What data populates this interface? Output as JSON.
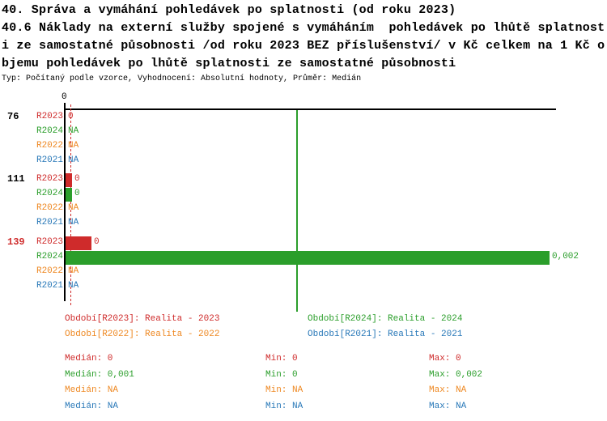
{
  "title_lines": [
    "40. Správa a vymáhání pohledávek po splatnosti (od roku 2023)",
    "40.6 Náklady na externí služby spojené s vymáháním  pohledávek po lhůtě splatnost",
    "i ze samostatné působnosti /od roku 2023 BEZ příslušenství/ v Kč celkem na 1 Kč o",
    "bjemu pohledávek po lhůtě splatnosti ze samostatné působnosti"
  ],
  "meta_line": "Typ: Počítaný podle vzorce, Vyhodnocení: Absolutní hodnoty, Průměr: Medián",
  "colors": {
    "red": "#cf2b2b",
    "green": "#2b9e2b",
    "orange": "#ee8822",
    "blue": "#2878b8",
    "black": "#000000"
  },
  "chart_data": {
    "type": "bar",
    "orientation": "horizontal",
    "xlim": [
      0,
      0.002
    ],
    "x_axis": {
      "tick_label": "0"
    },
    "reference_lines": [
      {
        "name": "median-red",
        "color": "red",
        "style": "dashed",
        "value": 2.7e-05
      },
      {
        "name": "median-green",
        "color": "green",
        "style": "solid",
        "value": 0.00096
      }
    ],
    "groups": [
      {
        "label": "76",
        "label_color": "black",
        "rows": [
          {
            "series": "R2023",
            "color": "red",
            "value": 0,
            "display": "0"
          },
          {
            "series": "R2024",
            "color": "green",
            "value": null,
            "display": "NA"
          },
          {
            "series": "R2022",
            "color": "orange",
            "value": null,
            "display": "NA"
          },
          {
            "series": "R2021",
            "color": "blue",
            "value": null,
            "display": "NA"
          }
        ]
      },
      {
        "label": "111",
        "label_color": "black",
        "rows": [
          {
            "series": "R2023",
            "color": "red",
            "value": 2.7e-05,
            "display": "0"
          },
          {
            "series": "R2024",
            "color": "green",
            "value": 2.7e-05,
            "display": "0"
          },
          {
            "series": "R2022",
            "color": "orange",
            "value": null,
            "display": "NA"
          },
          {
            "series": "R2021",
            "color": "blue",
            "value": null,
            "display": "NA"
          }
        ]
      },
      {
        "label": "139",
        "label_color": "red",
        "rows": [
          {
            "series": "R2023",
            "color": "red",
            "value": 0.000107,
            "display": "0"
          },
          {
            "series": "R2024",
            "color": "green",
            "value": 0.002,
            "display": "0,002"
          },
          {
            "series": "R2022",
            "color": "orange",
            "value": null,
            "display": "NA"
          },
          {
            "series": "R2021",
            "color": "blue",
            "value": null,
            "display": "NA"
          }
        ]
      }
    ]
  },
  "legend": [
    {
      "label": "Období[R2023]: Realita - 2023",
      "color": "red"
    },
    {
      "label": "Období[R2024]: Realita - 2024",
      "color": "green"
    },
    {
      "label": "Období[R2022]: Realita - 2022",
      "color": "orange"
    },
    {
      "label": "Období[R2021]: Realita - 2021",
      "color": "blue"
    }
  ],
  "stats": [
    {
      "color": "red",
      "median": "Medián: 0",
      "min": "Min: 0",
      "max": "Max: 0"
    },
    {
      "color": "green",
      "median": "Medián: 0,001",
      "min": "Min: 0",
      "max": "Max: 0,002"
    },
    {
      "color": "orange",
      "median": "Medián: NA",
      "min": "Min: NA",
      "max": "Max: NA"
    },
    {
      "color": "blue",
      "median": "Medián: NA",
      "min": "Min: NA",
      "max": "Max: NA"
    }
  ]
}
